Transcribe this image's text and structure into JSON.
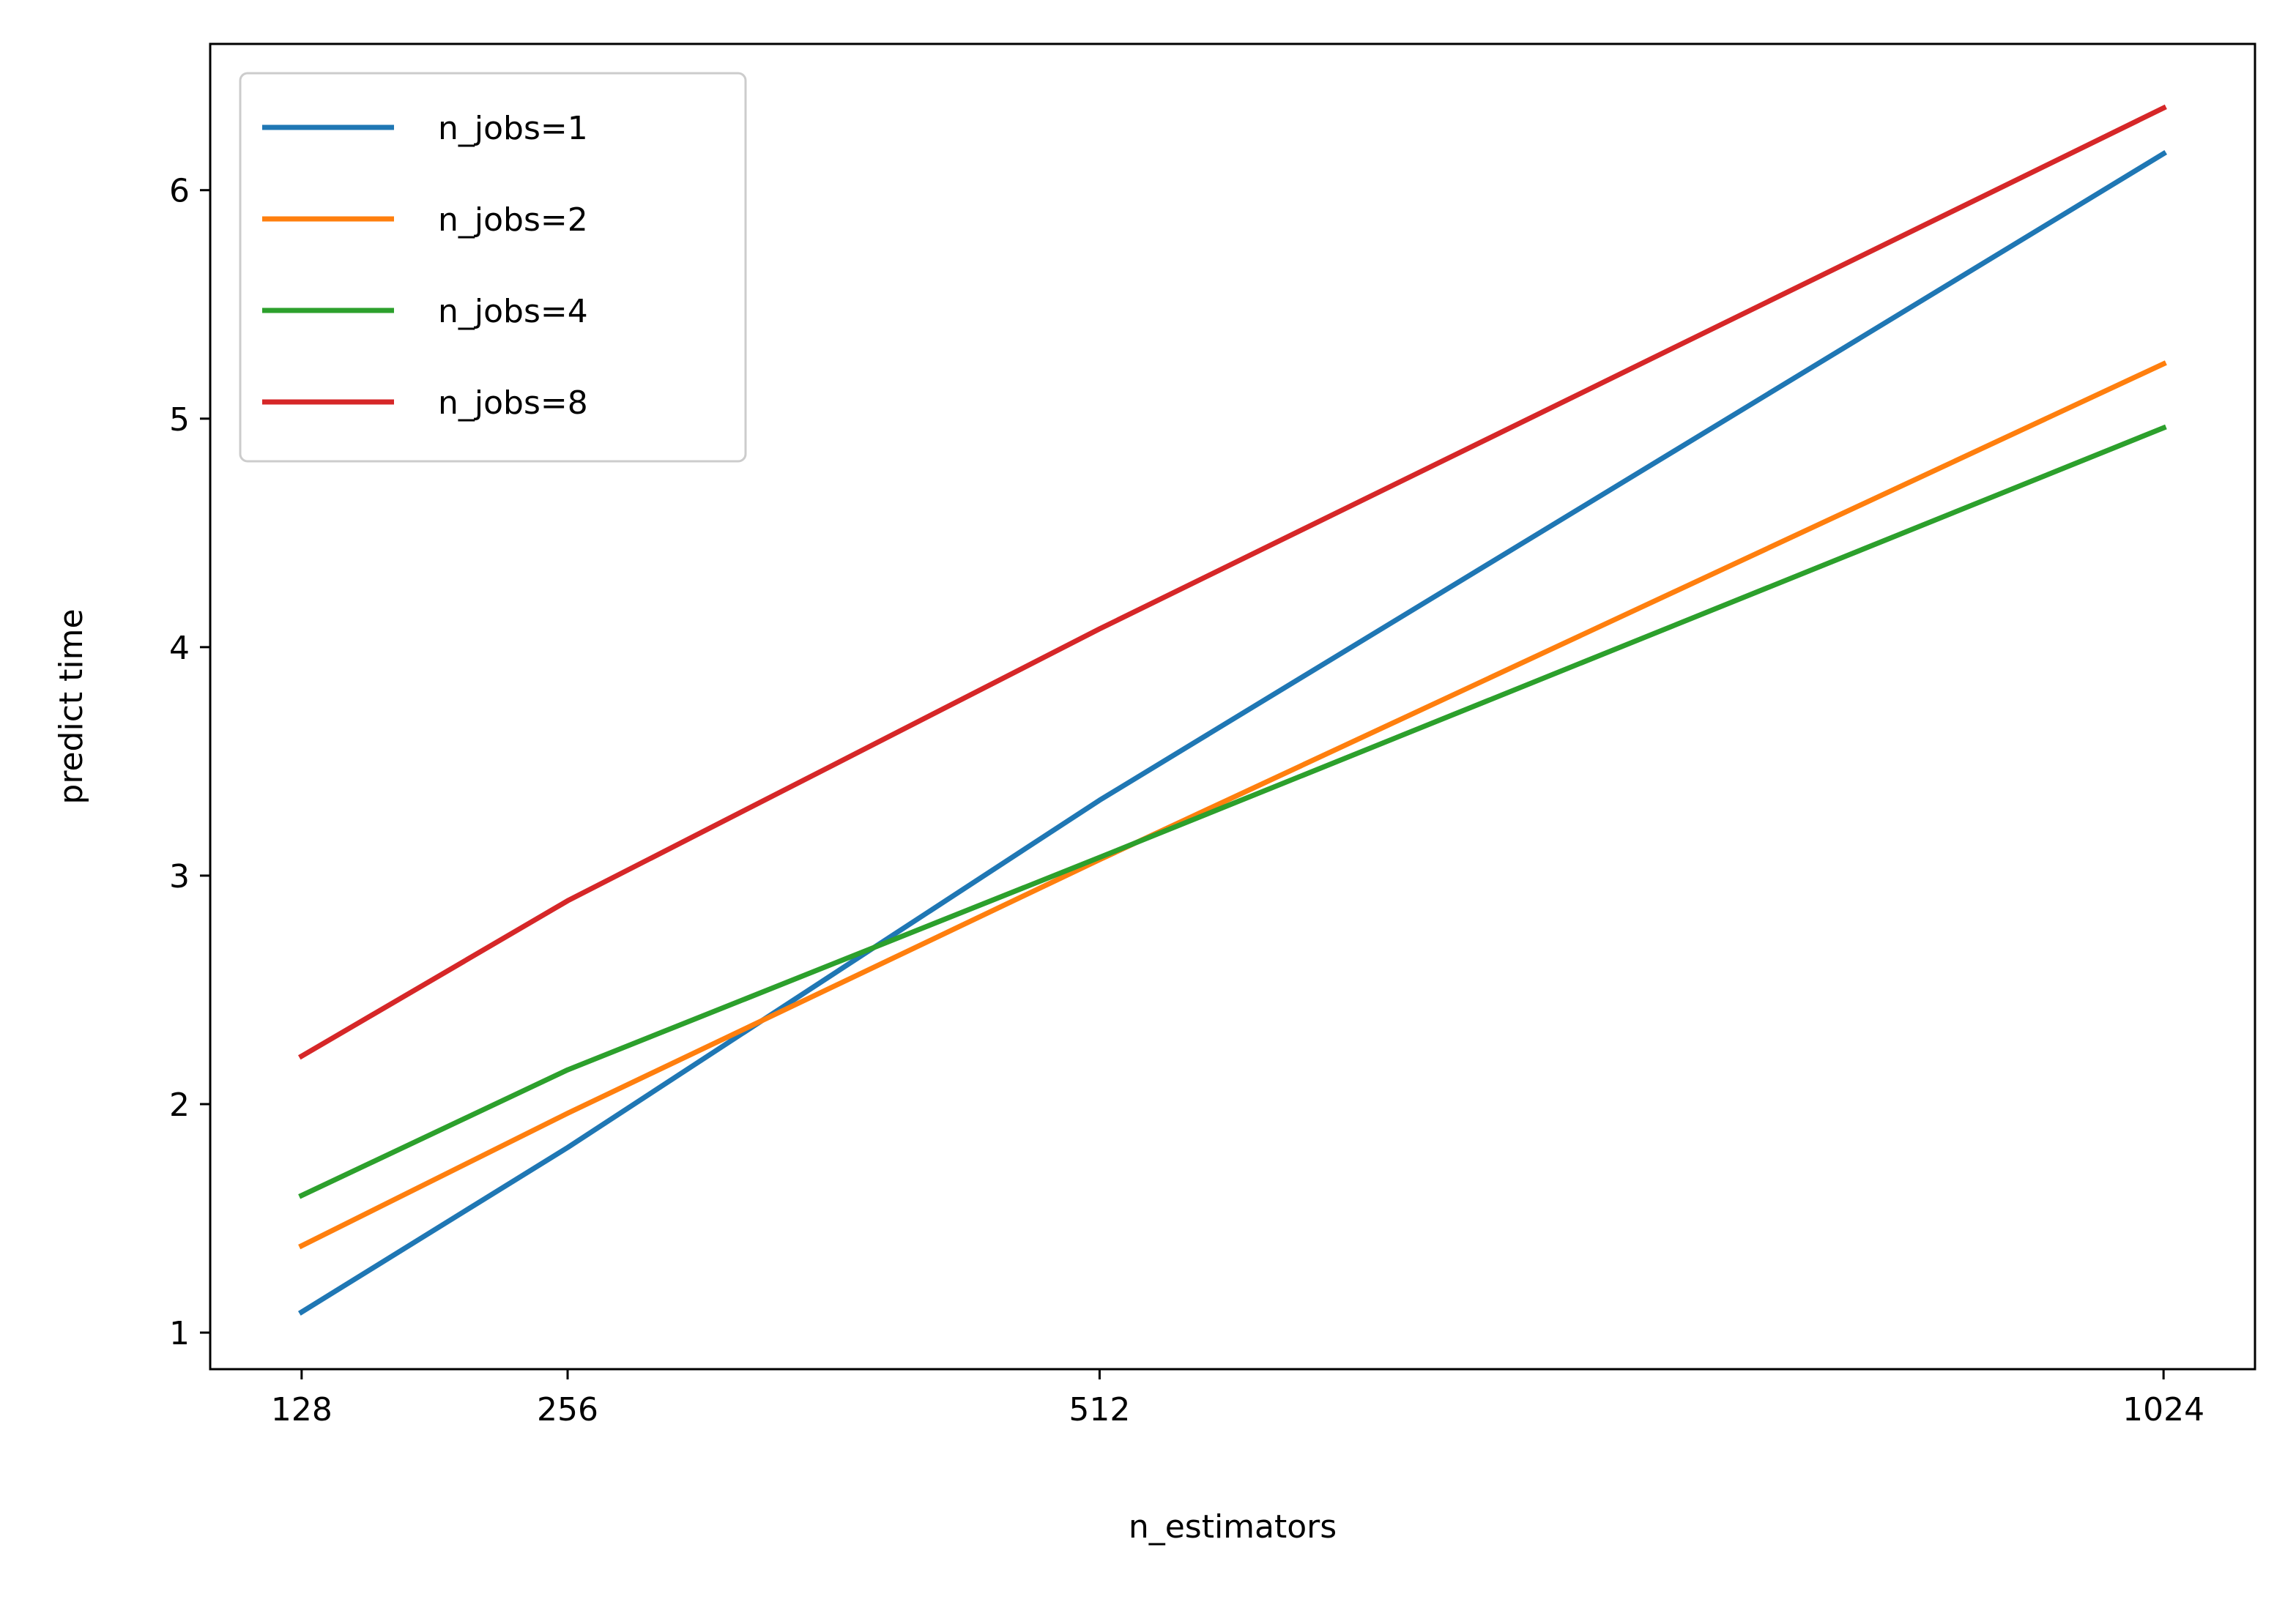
{
  "chart_data": {
    "type": "line",
    "title": "",
    "xlabel": "n_estimators",
    "ylabel": "predict time",
    "x": [
      128,
      256,
      512,
      1024
    ],
    "x_tick_labels": [
      "128",
      "256",
      "512",
      "1024"
    ],
    "y_ticks": [
      1,
      2,
      3,
      4,
      5,
      6
    ],
    "y_tick_labels": [
      "1",
      "2",
      "3",
      "4",
      "5",
      "6"
    ],
    "xlim": [
      84,
      1068
    ],
    "ylim": [
      0.84,
      6.64
    ],
    "grid": false,
    "legend_position": "upper-left",
    "series": [
      {
        "name": "n_jobs=1",
        "color": "#1f77b4",
        "values": [
          1.09,
          1.81,
          3.33,
          6.16
        ]
      },
      {
        "name": "n_jobs=2",
        "color": "#ff7f0e",
        "values": [
          1.38,
          1.96,
          3.07,
          5.24
        ]
      },
      {
        "name": "n_jobs=4",
        "color": "#2ca02c",
        "values": [
          1.6,
          2.15,
          3.08,
          4.96
        ]
      },
      {
        "name": "n_jobs=8",
        "color": "#d62728",
        "values": [
          2.21,
          2.89,
          4.08,
          6.36
        ]
      }
    ]
  }
}
